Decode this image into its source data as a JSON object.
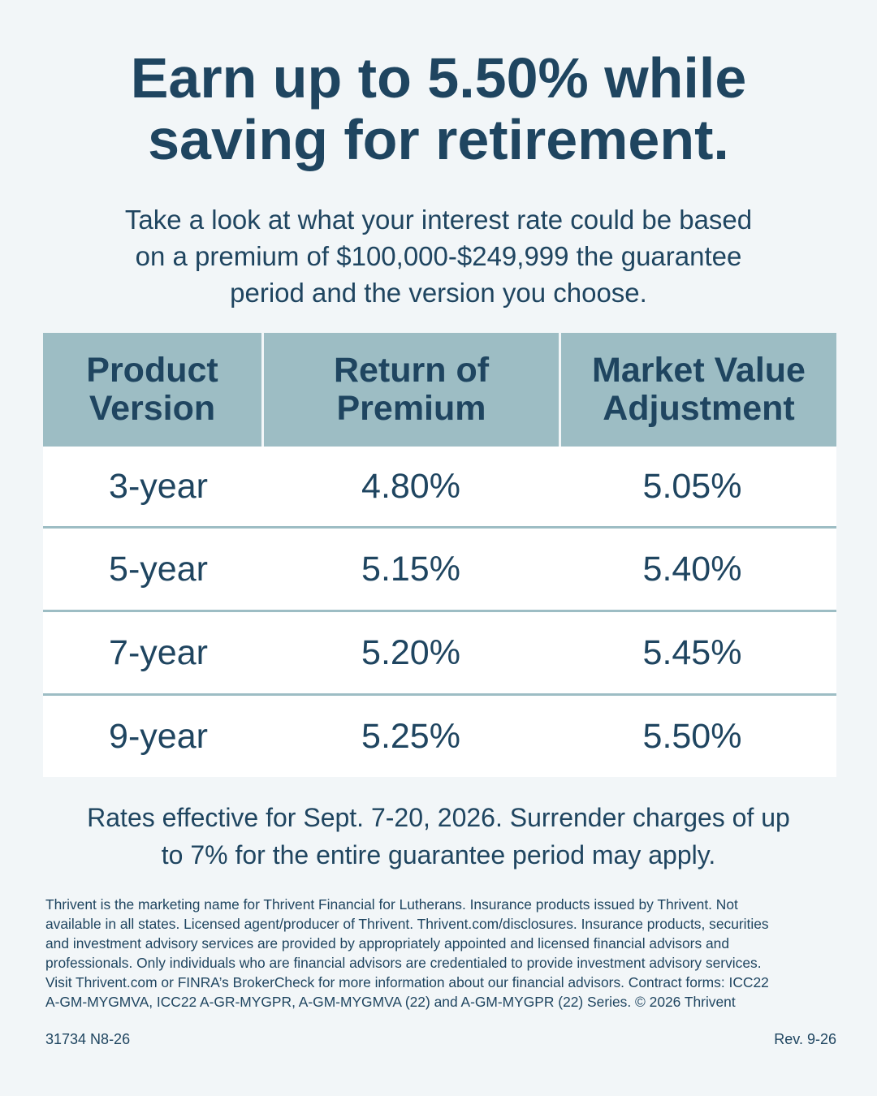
{
  "headline": {
    "line1": "Earn up to 5.50% while",
    "line2": "saving for retirement."
  },
  "intro": {
    "line1": "Take a look at what your interest rate could be based",
    "line2": "on a premium of $100,000-$249,999 the guarantee",
    "line3": "period and the version you choose."
  },
  "table": {
    "headers": [
      {
        "line1": "Product",
        "line2": "Version"
      },
      {
        "line1": "Return of",
        "line2": "Premium"
      },
      {
        "line1": "Market Value",
        "line2": "Adjustment"
      }
    ],
    "rows": [
      {
        "version": "3-year",
        "return_of_premium": "4.80%",
        "market_value_adjustment": "5.05%"
      },
      {
        "version": "5-year",
        "return_of_premium": "5.15%",
        "market_value_adjustment": "5.40%"
      },
      {
        "version": "7-year",
        "return_of_premium": "5.20%",
        "market_value_adjustment": "5.45%"
      },
      {
        "version": "9-year",
        "return_of_premium": "5.25%",
        "market_value_adjustment": "5.50%"
      }
    ]
  },
  "rates_note": {
    "line1": "Rates effective for Sept. 7-20, 2026. Surrender charges of up",
    "line2": "to 7% for the entire guarantee period may apply."
  },
  "disclaimer": [
    "Thrivent is the marketing name for Thrivent Financial for Lutherans. Insurance products issued by Thrivent. Not",
    "available in all states. Licensed agent/producer of Thrivent. Thrivent.com/disclosures. Insurance products, securities",
    "and investment advisory services are provided by appropriately appointed and licensed financial advisors and",
    "professionals. Only individuals who are financial advisors are credentialed to provide investment advisory services.",
    "Visit Thrivent.com or FINRA’s BrokerCheck for more information about our financial advisors. Contract forms: ICC22",
    "A-GM-MYGMVA, ICC22 A-GR-MYGPR, A-GM-MYGMVA (22) and A-GM-MYGPR (22) Series. © 2026 Thrivent"
  ],
  "footer": {
    "code": "31734 N8-26",
    "revision": "Rev. 9-26"
  },
  "colors": {
    "background": "#f2f6f8",
    "text": "#1f4560",
    "table_header": "#9dbdc4",
    "table_row": "#ffffff"
  }
}
